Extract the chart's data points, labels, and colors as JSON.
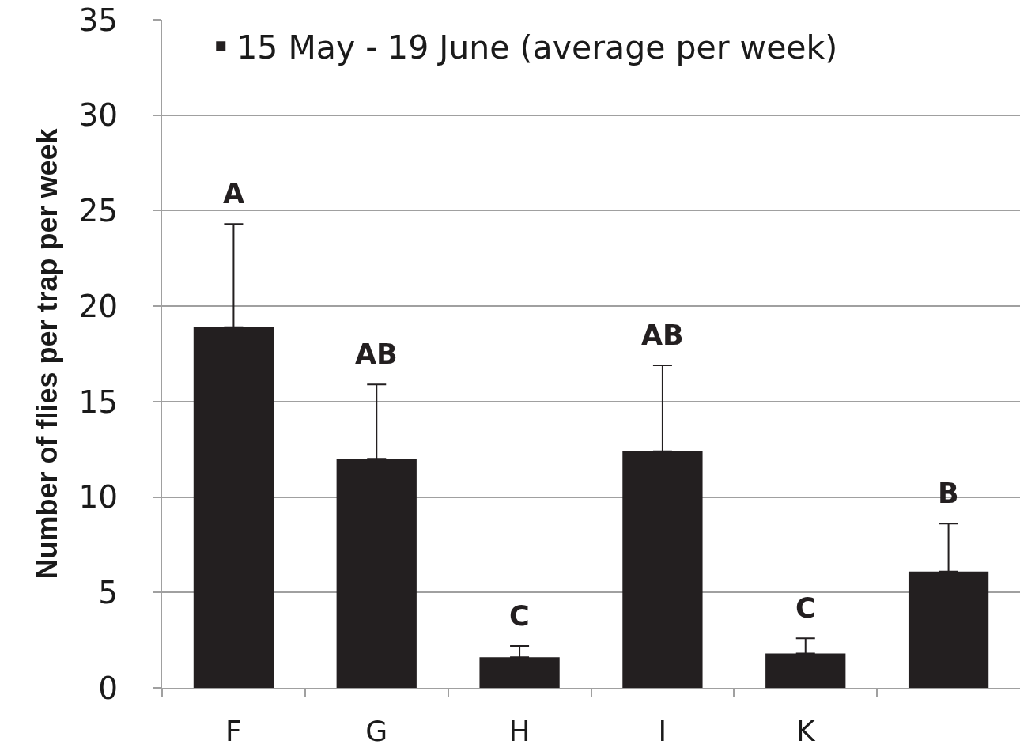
{
  "chart_data": {
    "type": "bar",
    "categories": [
      "F",
      "G",
      "H",
      "I",
      "K",
      null
    ],
    "series": [
      {
        "name": "15 May - 19 June (average per week)",
        "color": "#231f20",
        "values": [
          18.9,
          12.0,
          1.6,
          12.4,
          1.8,
          6.1
        ],
        "errors": [
          [
            18.9,
            24.3
          ],
          [
            12.0,
            15.9
          ],
          [
            1.6,
            2.2
          ],
          [
            12.4,
            16.9
          ],
          [
            1.8,
            2.6
          ],
          [
            6.1,
            8.6
          ]
        ]
      }
    ],
    "ylabel": "Number of flies per trap per week",
    "ylim": [
      0,
      35
    ],
    "yticks": [
      0,
      5,
      10,
      15,
      20,
      25,
      30,
      35
    ],
    "grid": "y",
    "legend": "top left",
    "annotations": [
      "A",
      "AB",
      "C",
      "AB",
      "C",
      "B"
    ]
  }
}
